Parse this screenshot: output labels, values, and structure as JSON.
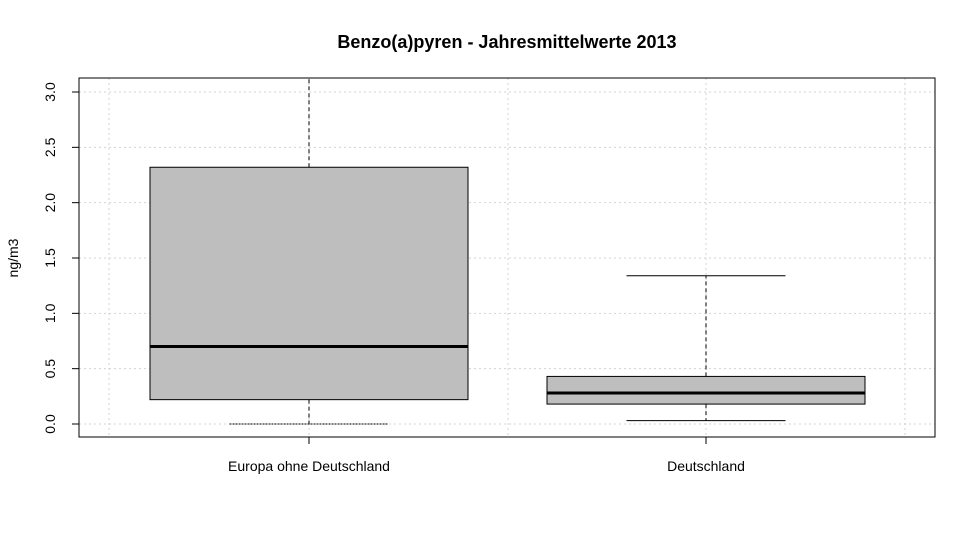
{
  "chart_data": {
    "type": "box",
    "title": "Benzo(a)pyren - Jahresmittelwerte 2013",
    "xlabel": "",
    "ylabel": "ng/m3",
    "ylim": [
      -0.12,
      3.13
    ],
    "y_ticks": [
      "0.0",
      "0.5",
      "1.0",
      "1.5",
      "2.0",
      "2.5",
      "3.0"
    ],
    "grid": true,
    "categories": [
      "Europa ohne Deutschland",
      "Deutschland"
    ],
    "boxes": [
      {
        "min": 0.0,
        "q1": 0.22,
        "median": 0.7,
        "q3": 2.32,
        "max": 3.13,
        "upper_whisker_clipped": true
      },
      {
        "min": 0.03,
        "q1": 0.18,
        "median": 0.28,
        "q3": 0.43,
        "max": 1.34,
        "upper_whisker_clipped": false
      }
    ],
    "colors": {
      "box_fill": "#bebebe",
      "stroke": "#000000",
      "grid": "#d3d3d3"
    }
  }
}
